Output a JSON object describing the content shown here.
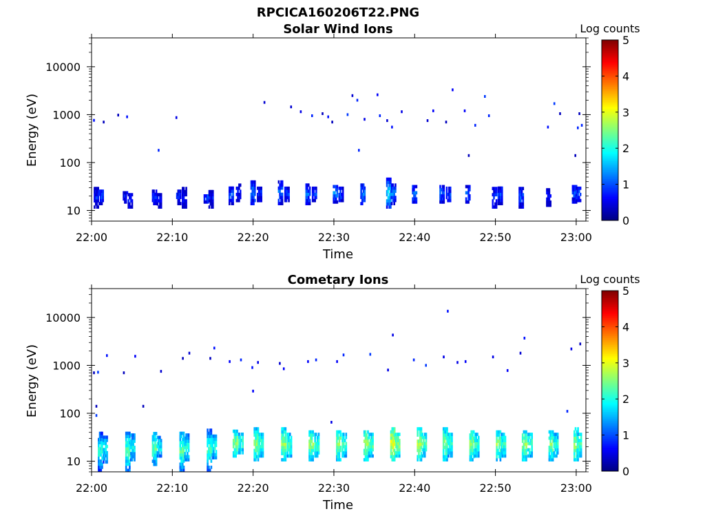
{
  "figure": {
    "title": "RPCICA160206T22.PNG"
  },
  "colorbar": {
    "label": "Log counts",
    "range": [
      0,
      5
    ],
    "ticks": [
      "0",
      "1",
      "2",
      "3",
      "4",
      "5"
    ],
    "colormap": "jet"
  },
  "chart_data": [
    {
      "type": "heatmap",
      "title": "Solar Wind Ions",
      "xlabel": "Time",
      "ylabel": "Energy (eV)",
      "x_ticks": [
        "22:00",
        "22:10",
        "22:20",
        "22:30",
        "22:40",
        "22:50",
        "23:00"
      ],
      "x_range_min": [
        0,
        61
      ],
      "y_scale": "log",
      "y_range": [
        6,
        40000
      ],
      "y_ticks": [
        "10",
        "100",
        "1000",
        "10000"
      ],
      "y_tick_values": [
        10,
        100,
        1000,
        10000
      ],
      "low_band": [
        {
          "t": 0.6,
          "e_lo": 11,
          "e_hi": 27,
          "v": 0.8
        },
        {
          "t": 1.2,
          "e_lo": 13,
          "e_hi": 26,
          "v": 0.9
        },
        {
          "t": 4.2,
          "e_lo": 14,
          "e_hi": 24,
          "v": 0.7
        },
        {
          "t": 4.8,
          "e_lo": 11,
          "e_hi": 22,
          "v": 0.9
        },
        {
          "t": 7.8,
          "e_lo": 13,
          "e_hi": 24,
          "v": 0.8
        },
        {
          "t": 8.4,
          "e_lo": 11,
          "e_hi": 23,
          "v": 0.7
        },
        {
          "t": 10.8,
          "e_lo": 13,
          "e_hi": 25,
          "v": 0.8
        },
        {
          "t": 11.5,
          "e_lo": 11,
          "e_hi": 27,
          "v": 0.7
        },
        {
          "t": 14.2,
          "e_lo": 14,
          "e_hi": 25,
          "v": 0.9
        },
        {
          "t": 14.8,
          "e_lo": 11,
          "e_hi": 26,
          "v": 0.7
        },
        {
          "t": 17.3,
          "e_lo": 13,
          "e_hi": 30,
          "v": 1.0
        },
        {
          "t": 18.2,
          "e_lo": 15,
          "e_hi": 32,
          "v": 0.8
        },
        {
          "t": 20.0,
          "e_lo": 13,
          "e_hi": 40,
          "v": 1.2
        },
        {
          "t": 20.8,
          "e_lo": 15,
          "e_hi": 30,
          "v": 0.8
        },
        {
          "t": 23.4,
          "e_lo": 13,
          "e_hi": 38,
          "v": 1.1
        },
        {
          "t": 24.2,
          "e_lo": 15,
          "e_hi": 30,
          "v": 0.9
        },
        {
          "t": 26.8,
          "e_lo": 13,
          "e_hi": 32,
          "v": 1.1
        },
        {
          "t": 27.6,
          "e_lo": 15,
          "e_hi": 30,
          "v": 0.9
        },
        {
          "t": 30.2,
          "e_lo": 14,
          "e_hi": 32,
          "v": 1.2
        },
        {
          "t": 30.9,
          "e_lo": 15,
          "e_hi": 28,
          "v": 0.9
        },
        {
          "t": 33.6,
          "e_lo": 13,
          "e_hi": 32,
          "v": 1.2
        },
        {
          "t": 36.8,
          "e_lo": 11,
          "e_hi": 42,
          "v": 1.7
        },
        {
          "t": 37.4,
          "e_lo": 13,
          "e_hi": 34,
          "v": 1.2
        },
        {
          "t": 40.0,
          "e_lo": 14,
          "e_hi": 32,
          "v": 1.1
        },
        {
          "t": 43.4,
          "e_lo": 14,
          "e_hi": 33,
          "v": 1.1
        },
        {
          "t": 44.2,
          "e_lo": 15,
          "e_hi": 30,
          "v": 0.9
        },
        {
          "t": 46.6,
          "e_lo": 14,
          "e_hi": 32,
          "v": 1.0
        },
        {
          "t": 49.9,
          "e_lo": 11,
          "e_hi": 28,
          "v": 1.0
        },
        {
          "t": 50.6,
          "e_lo": 13,
          "e_hi": 30,
          "v": 0.9
        },
        {
          "t": 53.2,
          "e_lo": 11,
          "e_hi": 30,
          "v": 1.0
        },
        {
          "t": 56.6,
          "e_lo": 12,
          "e_hi": 29,
          "v": 0.8
        },
        {
          "t": 59.8,
          "e_lo": 14,
          "e_hi": 34,
          "v": 1.0
        },
        {
          "t": 60.3,
          "e_lo": 15,
          "e_hi": 30,
          "v": 0.9
        }
      ],
      "scatter": [
        {
          "t": 0.3,
          "e": 760
        },
        {
          "t": 1.5,
          "e": 700
        },
        {
          "t": 3.3,
          "e": 980
        },
        {
          "t": 4.4,
          "e": 900
        },
        {
          "t": 8.3,
          "e": 180
        },
        {
          "t": 10.5,
          "e": 870
        },
        {
          "t": 21.4,
          "e": 1800
        },
        {
          "t": 24.7,
          "e": 1450
        },
        {
          "t": 25.9,
          "e": 1150
        },
        {
          "t": 27.3,
          "e": 950
        },
        {
          "t": 28.6,
          "e": 1050
        },
        {
          "t": 29.3,
          "e": 900
        },
        {
          "t": 29.8,
          "e": 700
        },
        {
          "t": 31.7,
          "e": 1000
        },
        {
          "t": 32.3,
          "e": 2500
        },
        {
          "t": 32.9,
          "e": 2000
        },
        {
          "t": 33.1,
          "e": 180
        },
        {
          "t": 33.8,
          "e": 800
        },
        {
          "t": 35.4,
          "e": 2600
        },
        {
          "t": 35.7,
          "e": 950
        },
        {
          "t": 36.6,
          "e": 750
        },
        {
          "t": 37.2,
          "e": 550
        },
        {
          "t": 38.4,
          "e": 1150
        },
        {
          "t": 41.6,
          "e": 750
        },
        {
          "t": 42.3,
          "e": 1200
        },
        {
          "t": 43.9,
          "e": 700
        },
        {
          "t": 44.7,
          "e": 3300
        },
        {
          "t": 46.2,
          "e": 1200
        },
        {
          "t": 46.7,
          "e": 140
        },
        {
          "t": 47.5,
          "e": 600
        },
        {
          "t": 48.7,
          "e": 2400
        },
        {
          "t": 49.2,
          "e": 950
        },
        {
          "t": 56.5,
          "e": 550
        },
        {
          "t": 57.3,
          "e": 1700
        },
        {
          "t": 58.0,
          "e": 1050
        },
        {
          "t": 59.9,
          "e": 140
        },
        {
          "t": 60.2,
          "e": 530
        },
        {
          "t": 60.4,
          "e": 1050
        },
        {
          "t": 60.7,
          "e": 600
        }
      ]
    },
    {
      "type": "heatmap",
      "title": "Cometary Ions",
      "xlabel": "Time",
      "ylabel": "Energy (eV)",
      "x_ticks": [
        "22:00",
        "22:10",
        "22:20",
        "22:30",
        "22:40",
        "22:50",
        "23:00"
      ],
      "x_range_min": [
        0,
        61
      ],
      "y_scale": "log",
      "y_range": [
        6,
        40000
      ],
      "y_ticks": [
        "10",
        "100",
        "1000",
        "10000"
      ],
      "y_tick_values": [
        10,
        100,
        1000,
        10000
      ],
      "low_band": [
        {
          "t": 1.1,
          "e_lo": 6,
          "e_hi": 38,
          "v": 2.1
        },
        {
          "t": 1.7,
          "e_lo": 9,
          "e_hi": 34,
          "v": 1.9
        },
        {
          "t": 4.5,
          "e_lo": 6,
          "e_hi": 40,
          "v": 2.4
        },
        {
          "t": 5.1,
          "e_lo": 10,
          "e_hi": 34,
          "v": 2.0
        },
        {
          "t": 7.8,
          "e_lo": 8,
          "e_hi": 38,
          "v": 2.3
        },
        {
          "t": 8.4,
          "e_lo": 12,
          "e_hi": 32,
          "v": 1.9
        },
        {
          "t": 11.2,
          "e_lo": 6,
          "e_hi": 40,
          "v": 2.4
        },
        {
          "t": 11.8,
          "e_lo": 10,
          "e_hi": 34,
          "v": 2.0
        },
        {
          "t": 14.6,
          "e_lo": 6,
          "e_hi": 42,
          "v": 2.3
        },
        {
          "t": 15.2,
          "e_lo": 11,
          "e_hi": 34,
          "v": 2.0
        },
        {
          "t": 17.8,
          "e_lo": 12,
          "e_hi": 42,
          "v": 2.5
        },
        {
          "t": 18.5,
          "e_lo": 14,
          "e_hi": 36,
          "v": 2.1
        },
        {
          "t": 20.4,
          "e_lo": 10,
          "e_hi": 46,
          "v": 2.6
        },
        {
          "t": 21.0,
          "e_lo": 12,
          "e_hi": 38,
          "v": 2.3
        },
        {
          "t": 23.8,
          "e_lo": 10,
          "e_hi": 46,
          "v": 2.6
        },
        {
          "t": 24.5,
          "e_lo": 12,
          "e_hi": 38,
          "v": 2.2
        },
        {
          "t": 27.2,
          "e_lo": 10,
          "e_hi": 44,
          "v": 2.6
        },
        {
          "t": 27.9,
          "e_lo": 12,
          "e_hi": 36,
          "v": 2.2
        },
        {
          "t": 30.6,
          "e_lo": 10,
          "e_hi": 44,
          "v": 2.6
        },
        {
          "t": 31.3,
          "e_lo": 12,
          "e_hi": 36,
          "v": 2.2
        },
        {
          "t": 34.0,
          "e_lo": 10,
          "e_hi": 44,
          "v": 2.7
        },
        {
          "t": 34.6,
          "e_lo": 12,
          "e_hi": 36,
          "v": 2.3
        },
        {
          "t": 37.3,
          "e_lo": 10,
          "e_hi": 46,
          "v": 3.0
        },
        {
          "t": 37.9,
          "e_lo": 12,
          "e_hi": 38,
          "v": 2.5
        },
        {
          "t": 40.6,
          "e_lo": 10,
          "e_hi": 46,
          "v": 2.7
        },
        {
          "t": 41.2,
          "e_lo": 12,
          "e_hi": 38,
          "v": 2.3
        },
        {
          "t": 43.8,
          "e_lo": 10,
          "e_hi": 46,
          "v": 2.6
        },
        {
          "t": 44.4,
          "e_lo": 12,
          "e_hi": 38,
          "v": 2.2
        },
        {
          "t": 47.1,
          "e_lo": 10,
          "e_hi": 44,
          "v": 2.6
        },
        {
          "t": 47.7,
          "e_lo": 12,
          "e_hi": 36,
          "v": 2.2
        },
        {
          "t": 50.4,
          "e_lo": 10,
          "e_hi": 44,
          "v": 2.6
        },
        {
          "t": 51.0,
          "e_lo": 12,
          "e_hi": 36,
          "v": 2.2
        },
        {
          "t": 53.6,
          "e_lo": 10,
          "e_hi": 44,
          "v": 2.6
        },
        {
          "t": 54.3,
          "e_lo": 12,
          "e_hi": 36,
          "v": 2.2
        },
        {
          "t": 56.9,
          "e_lo": 10,
          "e_hi": 44,
          "v": 2.5
        },
        {
          "t": 57.5,
          "e_lo": 12,
          "e_hi": 36,
          "v": 2.1
        },
        {
          "t": 60.0,
          "e_lo": 10,
          "e_hi": 46,
          "v": 2.7
        },
        {
          "t": 60.4,
          "e_lo": 12,
          "e_hi": 38,
          "v": 2.3
        }
      ],
      "scatter": [
        {
          "t": 0.3,
          "e": 700
        },
        {
          "t": 0.8,
          "e": 720
        },
        {
          "t": 0.6,
          "e": 140
        },
        {
          "t": 0.6,
          "e": 90
        },
        {
          "t": 1.9,
          "e": 1600
        },
        {
          "t": 4.0,
          "e": 700
        },
        {
          "t": 5.4,
          "e": 1550
        },
        {
          "t": 6.4,
          "e": 140
        },
        {
          "t": 8.6,
          "e": 750
        },
        {
          "t": 11.3,
          "e": 1400
        },
        {
          "t": 12.1,
          "e": 1800
        },
        {
          "t": 14.7,
          "e": 1400
        },
        {
          "t": 15.2,
          "e": 2300
        },
        {
          "t": 17.1,
          "e": 1200
        },
        {
          "t": 18.5,
          "e": 1300
        },
        {
          "t": 19.9,
          "e": 900
        },
        {
          "t": 20.0,
          "e": 290
        },
        {
          "t": 20.6,
          "e": 1150
        },
        {
          "t": 23.3,
          "e": 1100
        },
        {
          "t": 23.8,
          "e": 850
        },
        {
          "t": 26.8,
          "e": 1200
        },
        {
          "t": 27.8,
          "e": 1300
        },
        {
          "t": 29.7,
          "e": 65
        },
        {
          "t": 30.4,
          "e": 1200
        },
        {
          "t": 31.2,
          "e": 1650
        },
        {
          "t": 34.5,
          "e": 1700
        },
        {
          "t": 36.7,
          "e": 800
        },
        {
          "t": 37.3,
          "e": 4300
        },
        {
          "t": 39.9,
          "e": 1300
        },
        {
          "t": 41.4,
          "e": 1000
        },
        {
          "t": 43.6,
          "e": 1500
        },
        {
          "t": 44.1,
          "e": 13500
        },
        {
          "t": 45.3,
          "e": 1150
        },
        {
          "t": 46.3,
          "e": 1200
        },
        {
          "t": 49.7,
          "e": 1500
        },
        {
          "t": 51.5,
          "e": 780
        },
        {
          "t": 53.6,
          "e": 3700
        },
        {
          "t": 53.1,
          "e": 1800
        },
        {
          "t": 58.9,
          "e": 110
        },
        {
          "t": 59.4,
          "e": 2200
        },
        {
          "t": 60.5,
          "e": 2800
        }
      ]
    }
  ]
}
